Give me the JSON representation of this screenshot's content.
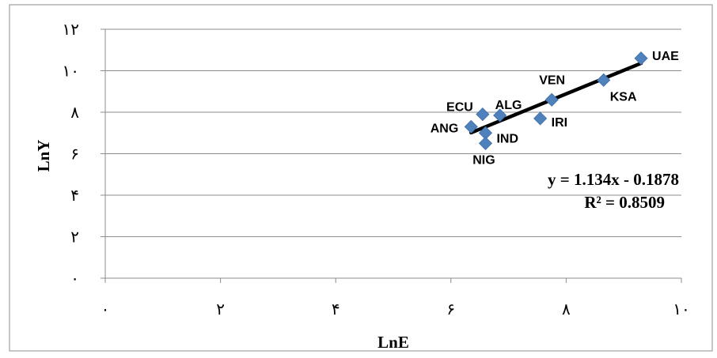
{
  "chart_data": {
    "type": "scatter",
    "title": "",
    "xlabel": "LnE",
    "ylabel": "LnY",
    "xlim": [
      0,
      10
    ],
    "ylim": [
      0,
      12
    ],
    "x_ticks": [
      0,
      2,
      4,
      6,
      8,
      10
    ],
    "y_ticks": [
      0,
      2,
      4,
      6,
      8,
      10,
      12
    ],
    "x_tick_labels": [
      "٠",
      "٢",
      "۴",
      "۶",
      "٨",
      "١٠"
    ],
    "y_tick_labels": [
      "٠",
      "٢",
      "۴",
      "۶",
      "٨",
      "١٠",
      "١٢"
    ],
    "grid": "horizontal",
    "legend": "none",
    "marker": "diamond",
    "marker_color": "#4F81BD",
    "trendline_color": "#000000",
    "points": [
      {
        "label": "UAE",
        "x": 9.3,
        "y": 10.6
      },
      {
        "label": "KSA",
        "x": 8.65,
        "y": 9.55
      },
      {
        "label": "VEN",
        "x": 7.75,
        "y": 8.6
      },
      {
        "label": "IRI",
        "x": 7.55,
        "y": 7.7
      },
      {
        "label": "ALG",
        "x": 6.85,
        "y": 7.85
      },
      {
        "label": "ECU",
        "x": 6.55,
        "y": 7.9
      },
      {
        "label": "IND",
        "x": 6.6,
        "y": 7.0
      },
      {
        "label": "ANG",
        "x": 6.35,
        "y": 7.3
      },
      {
        "label": "NIG",
        "x": 6.6,
        "y": 6.5
      }
    ],
    "trendline": {
      "slope": 1.134,
      "intercept": -0.1878,
      "x_range": [
        6.35,
        9.3
      ],
      "equation": "y = 1.134x - 0.1878",
      "r_squared": "R² = 0.8509"
    }
  }
}
